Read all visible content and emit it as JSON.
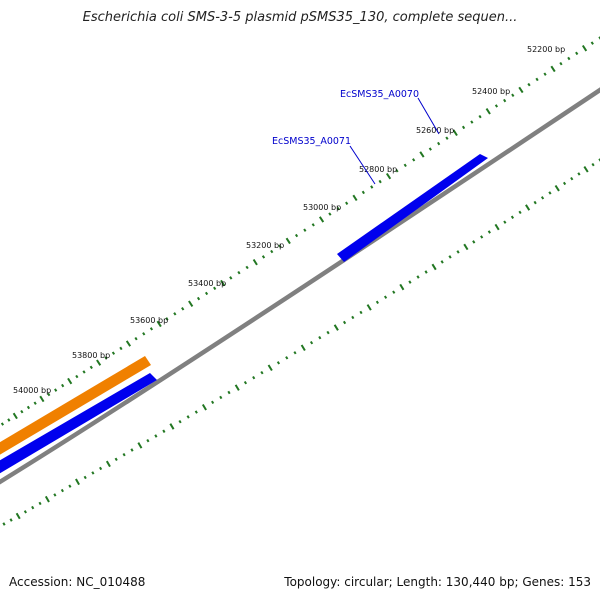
{
  "title": "Escherichia coli SMS-3-5 plasmid pSMS35_130, complete sequen...",
  "ticks": [
    {
      "label": "52200 bp"
    },
    {
      "label": "52400 bp"
    },
    {
      "label": "52600 bp"
    },
    {
      "label": "52800 bp"
    },
    {
      "label": "53000 bp"
    },
    {
      "label": "53200 bp"
    },
    {
      "label": "53400 bp"
    },
    {
      "label": "53600 bp"
    },
    {
      "label": "53800 bp"
    },
    {
      "label": "54000 bp"
    }
  ],
  "genes": [
    {
      "label": "EcSMS35_A0070",
      "color": "#0000ee"
    },
    {
      "label": "EcSMS35_A0071",
      "color": "#0000ee"
    }
  ],
  "colors": {
    "backbone": "#808080",
    "tick": "#227722",
    "gene_blue": "#0000ee",
    "gene_orange": "#f08000"
  },
  "footer": {
    "accession": "Accession: NC_010488",
    "summary": "Topology: circular; Length: 130,440 bp; Genes: 153"
  }
}
